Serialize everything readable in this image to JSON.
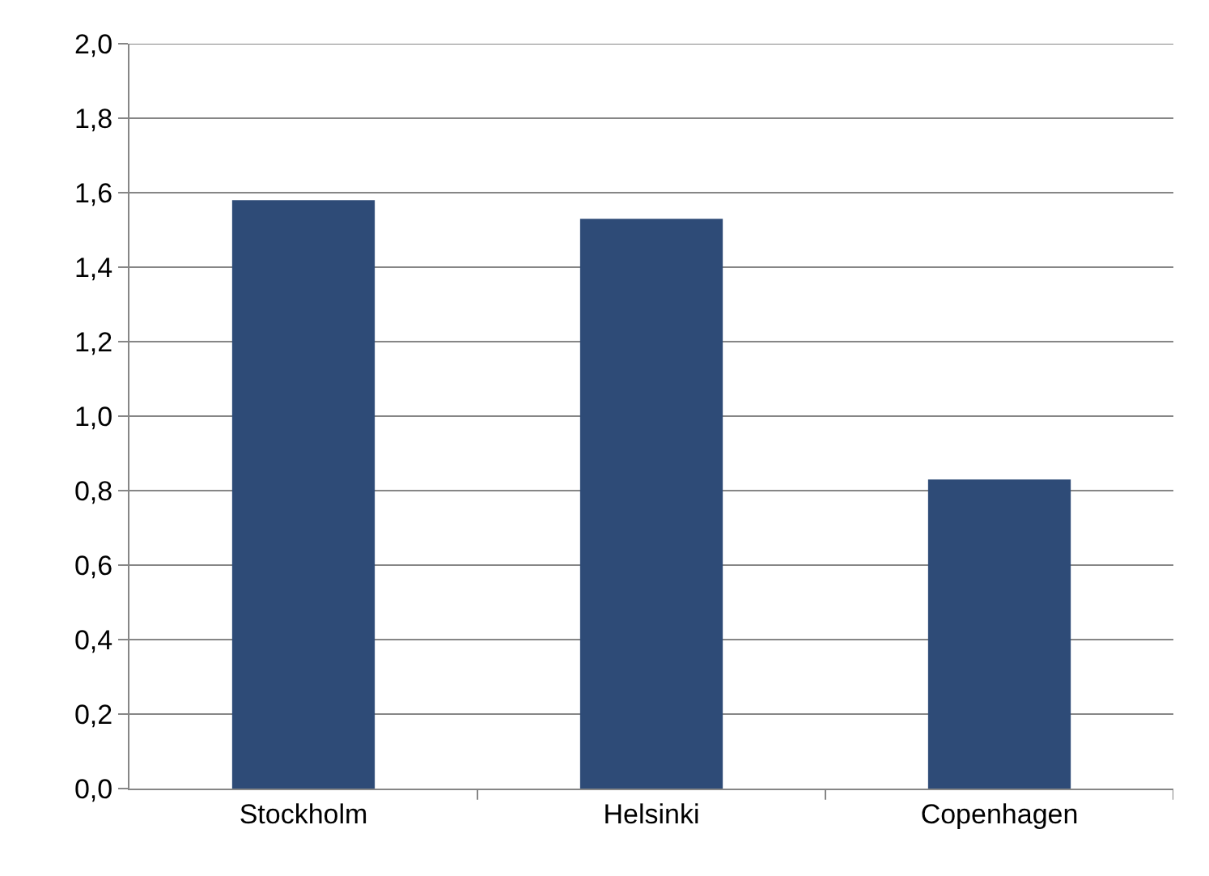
{
  "chart_data": {
    "type": "bar",
    "categories": [
      "Stockholm",
      "Helsinki",
      "Copenhagen"
    ],
    "values": [
      1.58,
      1.53,
      0.83
    ],
    "color": "#2e4b77",
    "ylim": [
      0,
      2
    ],
    "yticks": [
      {
        "value": 0,
        "label": "0,0"
      },
      {
        "value": 0.2,
        "label": "0,2"
      },
      {
        "value": 0.4,
        "label": "0,4"
      },
      {
        "value": 0.6,
        "label": "0,6"
      },
      {
        "value": 0.8,
        "label": "0,8"
      },
      {
        "value": 1,
        "label": "1,0"
      },
      {
        "value": 1.2,
        "label": "1,2"
      },
      {
        "value": 1.4,
        "label": "1,4"
      },
      {
        "value": 1.6,
        "label": "1,6"
      },
      {
        "value": 1.8,
        "label": "1,8"
      },
      {
        "value": 2,
        "label": "2,0"
      }
    ],
    "grid": "y"
  }
}
